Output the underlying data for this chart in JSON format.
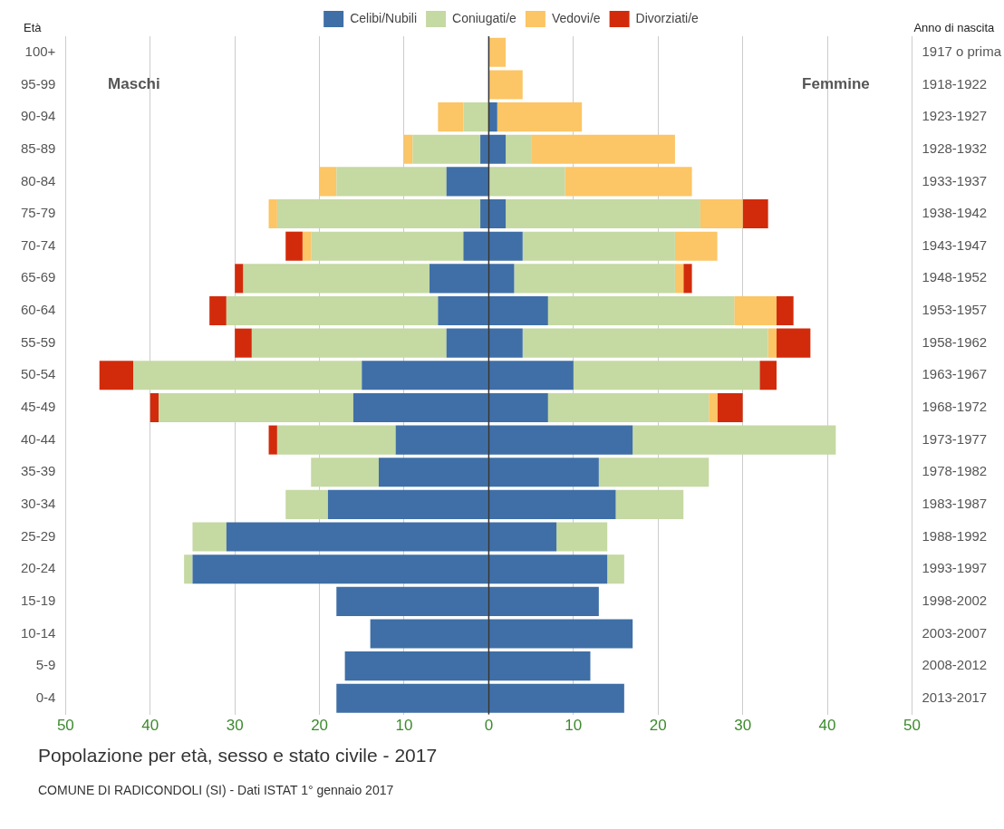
{
  "chart_data": {
    "type": "bar",
    "orientation": "horizontal",
    "stacked": true,
    "title": "Popolazione per età, sesso e stato civile - 2017",
    "ylabel": "Età",
    "y2label": "Anno di nascita",
    "categories": [
      "100+",
      "95-99",
      "90-94",
      "85-89",
      "80-84",
      "75-79",
      "70-74",
      "65-69",
      "60-64",
      "55-59",
      "50-54",
      "45-49",
      "40-44",
      "35-39",
      "30-34",
      "25-29",
      "20-24",
      "15-19",
      "10-14",
      "5-9",
      "0-4"
    ],
    "y2_categories": [
      "1917 o prima",
      "1918-1922",
      "1923-1927",
      "1928-1932",
      "1933-1937",
      "1938-1942",
      "1943-1947",
      "1948-1952",
      "1953-1957",
      "1958-1962",
      "1963-1967",
      "1968-1972",
      "1973-1977",
      "1978-1982",
      "1983-1987",
      "1988-1992",
      "1993-1997",
      "1998-2002",
      "2003-2007",
      "2008-2012",
      "2013-2017"
    ],
    "series": [
      {
        "name": "Celibi/Nubili",
        "color": "#3f6fa6",
        "values": [
          0,
          0,
          0,
          -1,
          -5,
          -1,
          -3,
          -7,
          -6,
          -5,
          -15,
          -16,
          -11,
          -13,
          -19,
          -31,
          -35,
          -18,
          -14,
          -17,
          -18
        ]
      },
      {
        "name": "Coniugati/e",
        "color": "#c5d9a3",
        "values": [
          0,
          0,
          -3,
          -8,
          -13,
          -24,
          -18,
          -22,
          -25,
          -23,
          -27,
          -23,
          -14,
          -8,
          -5,
          -4,
          -1,
          0,
          0,
          0,
          0
        ]
      },
      {
        "name": "Vedovi/e",
        "color": "#fcc565",
        "values": [
          0,
          0,
          -3,
          -1,
          -2,
          -1,
          -1,
          0,
          0,
          0,
          0,
          0,
          0,
          0,
          0,
          0,
          0,
          0,
          0,
          0,
          0
        ]
      },
      {
        "name": "Divorziati/e",
        "color": "#d22b0b",
        "values": [
          0,
          0,
          0,
          0,
          0,
          0,
          -2,
          -1,
          -2,
          -2,
          -4,
          -1,
          -1,
          0,
          0,
          0,
          0,
          0,
          0,
          0,
          0
        ]
      },
      {
        "color": "#3f6fa6",
        "values": [
          0,
          0,
          1,
          2,
          0,
          2,
          4,
          3,
          7,
          4,
          10,
          7,
          17,
          13,
          15,
          8,
          14,
          13,
          17,
          12,
          16
        ]
      },
      {
        "color": "#c5d9a3",
        "values": [
          0,
          0,
          0,
          3,
          9,
          23,
          18,
          19,
          22,
          29,
          22,
          19,
          24,
          13,
          8,
          6,
          2,
          0,
          0,
          0,
          0
        ]
      },
      {
        "color": "#fcc565",
        "values": [
          2,
          4,
          10,
          17,
          15,
          5,
          5,
          1,
          5,
          1,
          0,
          1,
          0,
          0,
          0,
          0,
          0,
          0,
          0,
          0,
          0
        ]
      },
      {
        "color": "#d22b0b",
        "values": [
          0,
          0,
          0,
          0,
          0,
          3,
          0,
          1,
          2,
          4,
          2,
          3,
          0,
          0,
          0,
          0,
          0,
          0,
          0,
          0,
          0
        ]
      }
    ],
    "xlim": [
      -50,
      50
    ],
    "xticks": [
      {
        "value": -50,
        "label": "50"
      },
      {
        "value": -40,
        "label": "40"
      },
      {
        "value": -30,
        "label": "30"
      },
      {
        "value": -20,
        "label": "20"
      },
      {
        "value": -10,
        "label": "10"
      },
      0,
      10,
      20,
      30,
      40,
      50
    ],
    "grid": "x",
    "legend": "top",
    "annotations": [
      "Maschi",
      "Femmine",
      "COMUNE DI RADICONDOLI (SI) - Dati ISTAT 1° gennaio 2017"
    ]
  }
}
